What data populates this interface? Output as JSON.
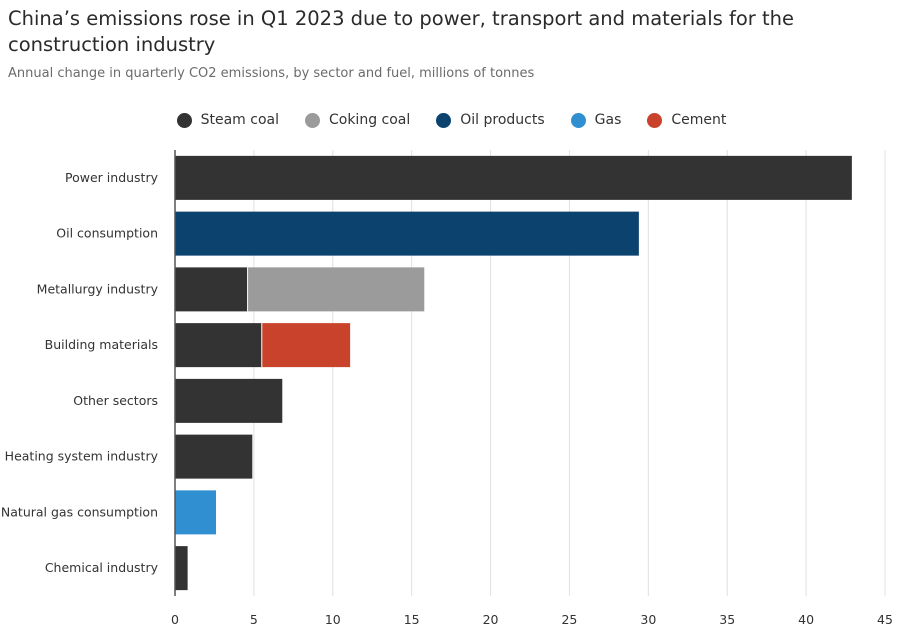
{
  "title": "China’s emissions rose in Q1 2023 due to power, transport and materials for the construction industry",
  "subtitle": "Annual change in quarterly CO2 emissions, by sector and fuel, millions of tonnes",
  "colors": {
    "steam_coal": "#333333",
    "coking_coal": "#9b9b9b",
    "oil_products": "#0c426e",
    "gas": "#2f8fd1",
    "cement": "#c9432c",
    "gridline": "#e0e0e0",
    "axis": "#555555"
  },
  "legend": [
    {
      "label": "Steam coal",
      "color": "#333333"
    },
    {
      "label": "Coking coal",
      "color": "#9b9b9b"
    },
    {
      "label": "Oil products",
      "color": "#0c426e"
    },
    {
      "label": "Gas",
      "color": "#2f8fd1"
    },
    {
      "label": "Cement",
      "color": "#c9432c"
    }
  ],
  "chart_data": {
    "type": "bar",
    "orientation": "horizontal",
    "stacked": true,
    "categories": [
      "Power industry",
      "Oil consumption",
      "Metallurgy industry",
      "Building materials",
      "Other sectors",
      "Heating system industry",
      "Natural gas consumption",
      "Chemical industry"
    ],
    "series": [
      {
        "name": "Steam coal",
        "color": "#333333",
        "values": [
          42.9,
          0,
          4.6,
          5.5,
          6.8,
          4.9,
          0,
          0.8
        ]
      },
      {
        "name": "Coking coal",
        "color": "#9b9b9b",
        "values": [
          0,
          0,
          11.2,
          0,
          0,
          0,
          0,
          0
        ]
      },
      {
        "name": "Oil products",
        "color": "#0c426e",
        "values": [
          0,
          29.4,
          0,
          0,
          0,
          0,
          0,
          0
        ]
      },
      {
        "name": "Gas",
        "color": "#2f8fd1",
        "values": [
          0,
          0,
          0,
          0,
          0,
          0,
          2.6,
          0
        ]
      },
      {
        "name": "Cement",
        "color": "#c9432c",
        "values": [
          0,
          0,
          0,
          5.6,
          0,
          0,
          0,
          0
        ]
      }
    ],
    "xlim": [
      0,
      45
    ],
    "xticks": [
      0,
      5,
      10,
      15,
      20,
      25,
      30,
      35,
      40,
      45
    ],
    "grid": true,
    "legend_position": "top"
  }
}
